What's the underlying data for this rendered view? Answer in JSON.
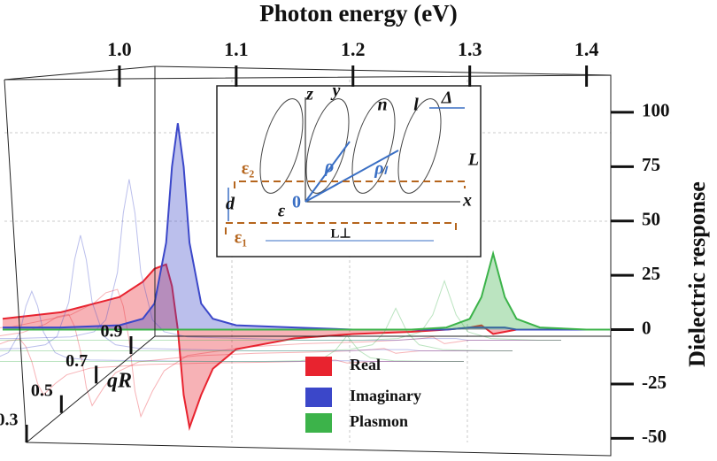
{
  "chart_data": {
    "type": "line",
    "xlabel": "Photon energy (eV)",
    "ylabel": "Dielectric response",
    "zlabel": "qR",
    "xlim": [
      0.9,
      1.42
    ],
    "xticks": [
      {
        "value": 1.0,
        "label": "1.0"
      },
      1.1,
      1.2,
      1.3,
      1.4
    ],
    "ylim": [
      -58,
      113
    ],
    "yticks": [
      -50,
      -25,
      0,
      25,
      50,
      75,
      100
    ],
    "zticks": [
      0.3,
      0.5,
      0.7,
      0.9
    ],
    "x": [
      0.9,
      0.95,
      1.0,
      1.02,
      1.03,
      1.04,
      1.045,
      1.05,
      1.055,
      1.06,
      1.07,
      1.08,
      1.1,
      1.15,
      1.2,
      1.25,
      1.28,
      1.3,
      1.31,
      1.32,
      1.33,
      1.34,
      1.36,
      1.4,
      1.42
    ],
    "series": [
      {
        "name": "Real",
        "color": "#e8232f",
        "values": [
          5,
          8,
          15,
          22,
          28,
          30,
          20,
          0,
          -30,
          -45,
          -30,
          -18,
          -9,
          -4,
          -2,
          -1,
          0,
          1,
          2,
          -2,
          -1,
          0,
          0,
          0,
          0
        ]
      },
      {
        "name": "Imaginary",
        "color": "#3b47c9",
        "values": [
          1,
          1,
          2,
          5,
          12,
          40,
          75,
          95,
          75,
          40,
          12,
          5,
          2,
          1,
          0,
          0,
          0,
          1,
          1,
          1,
          1,
          0,
          0,
          0,
          0
        ]
      },
      {
        "name": "Plasmon",
        "color": "#3cb34a",
        "values": [
          0,
          0,
          0,
          0,
          0,
          0,
          0,
          0,
          0,
          0,
          0,
          0,
          0,
          0,
          0,
          0,
          1,
          5,
          15,
          35,
          15,
          5,
          1,
          0,
          0
        ]
      }
    ],
    "inset": {
      "labels": [
        "z",
        "y",
        "n",
        "l",
        "Δ",
        "L",
        "ρ",
        "ρₗ",
        "ε₂",
        "d",
        "ε",
        "0",
        "x",
        "ε₁",
        "L⊥"
      ]
    }
  }
}
